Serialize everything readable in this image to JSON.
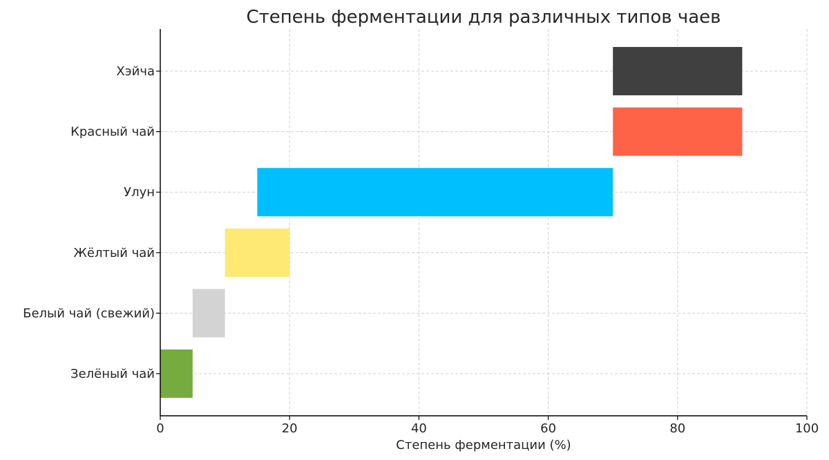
{
  "chart_data": {
    "type": "bar",
    "orientation": "horizontal",
    "title": "Степень ферментации для различных типов чаев",
    "xlabel": "Степень ферментации (%)",
    "ylabel": "",
    "xlim": [
      0,
      100
    ],
    "x_ticks": [
      0,
      20,
      40,
      60,
      80,
      100
    ],
    "grid": true,
    "legend": "none",
    "categories": [
      "Зелёный чай",
      "Белый чай (свежий)",
      "Жёлтый чай",
      "Улун",
      "Красный чай",
      "Хэйча"
    ],
    "ranges": [
      {
        "category": "Зелёный чай",
        "start": 0,
        "end": 5,
        "color": "#76ac3f"
      },
      {
        "category": "Белый чай (свежий)",
        "start": 5,
        "end": 10,
        "color": "#d3d3d3"
      },
      {
        "category": "Жёлтый чай",
        "start": 10,
        "end": 20,
        "color": "#fde973"
      },
      {
        "category": "Улун",
        "start": 15,
        "end": 70,
        "color": "#00bfff"
      },
      {
        "category": "Красный чай",
        "start": 70,
        "end": 90,
        "color": "#ff6347"
      },
      {
        "category": "Хэйча",
        "start": 70,
        "end": 90,
        "color": "#404040"
      }
    ]
  }
}
